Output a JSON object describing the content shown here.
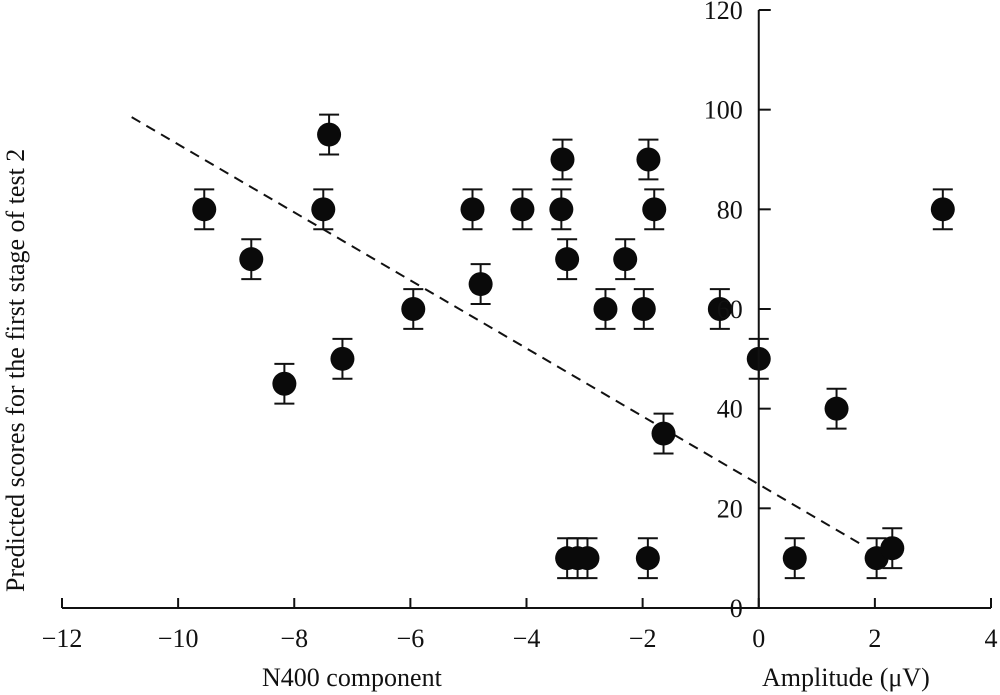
{
  "chart_data": {
    "type": "scatter",
    "title": "",
    "xlabel_left": "N400 component",
    "xlabel_right": "Amplitude (μV)",
    "ylabel": "Predicted scores for the first stage of test 2",
    "xlim": [
      -12,
      4
    ],
    "ylim": [
      0,
      120
    ],
    "x_ticks": [
      -12,
      -10,
      -8,
      -6,
      -4,
      -2,
      0,
      2,
      4
    ],
    "x_tick_labels": [
      "−12",
      "−10",
      "−8",
      "−6",
      "−4",
      "−2",
      "0",
      "2",
      "4"
    ],
    "y_ticks": [
      0,
      20,
      40,
      60,
      80,
      100,
      120
    ],
    "y_tick_labels": [
      "0",
      "20",
      "40",
      "60",
      "80",
      "100",
      "120"
    ],
    "grid": false,
    "error_bar": 4,
    "points": [
      {
        "x": -9.55,
        "y": 80
      },
      {
        "x": -8.74,
        "y": 70
      },
      {
        "x": -8.17,
        "y": 45
      },
      {
        "x": -7.4,
        "y": 95
      },
      {
        "x": -7.5,
        "y": 80
      },
      {
        "x": -7.17,
        "y": 50
      },
      {
        "x": -5.95,
        "y": 60
      },
      {
        "x": -4.93,
        "y": 80
      },
      {
        "x": -4.79,
        "y": 65
      },
      {
        "x": -4.07,
        "y": 80
      },
      {
        "x": -3.38,
        "y": 90
      },
      {
        "x": -3.4,
        "y": 80
      },
      {
        "x": -3.3,
        "y": 70
      },
      {
        "x": -2.64,
        "y": 60
      },
      {
        "x": -2.3,
        "y": 70
      },
      {
        "x": -1.98,
        "y": 60
      },
      {
        "x": -1.9,
        "y": 90
      },
      {
        "x": -1.8,
        "y": 80
      },
      {
        "x": -1.64,
        "y": 35
      },
      {
        "x": -0.67,
        "y": 60
      },
      {
        "x": 0,
        "y": 50
      },
      {
        "x": 0.62,
        "y": 10
      },
      {
        "x": 1.34,
        "y": 40
      },
      {
        "x": 2.03,
        "y": 10
      },
      {
        "x": 2.3,
        "y": 12
      },
      {
        "x": 3.17,
        "y": 80
      },
      {
        "x": -3.3,
        "y": 10
      },
      {
        "x": -3.12,
        "y": 10
      },
      {
        "x": -2.95,
        "y": 10
      },
      {
        "x": -1.91,
        "y": 10
      }
    ],
    "trend_line": {
      "x1": -10.8,
      "y1": 98.5,
      "x2": 1.79,
      "y2": 12.6,
      "style": "dashed"
    },
    "marker_color": "#0a0a0a",
    "axis_color": "#111111"
  }
}
